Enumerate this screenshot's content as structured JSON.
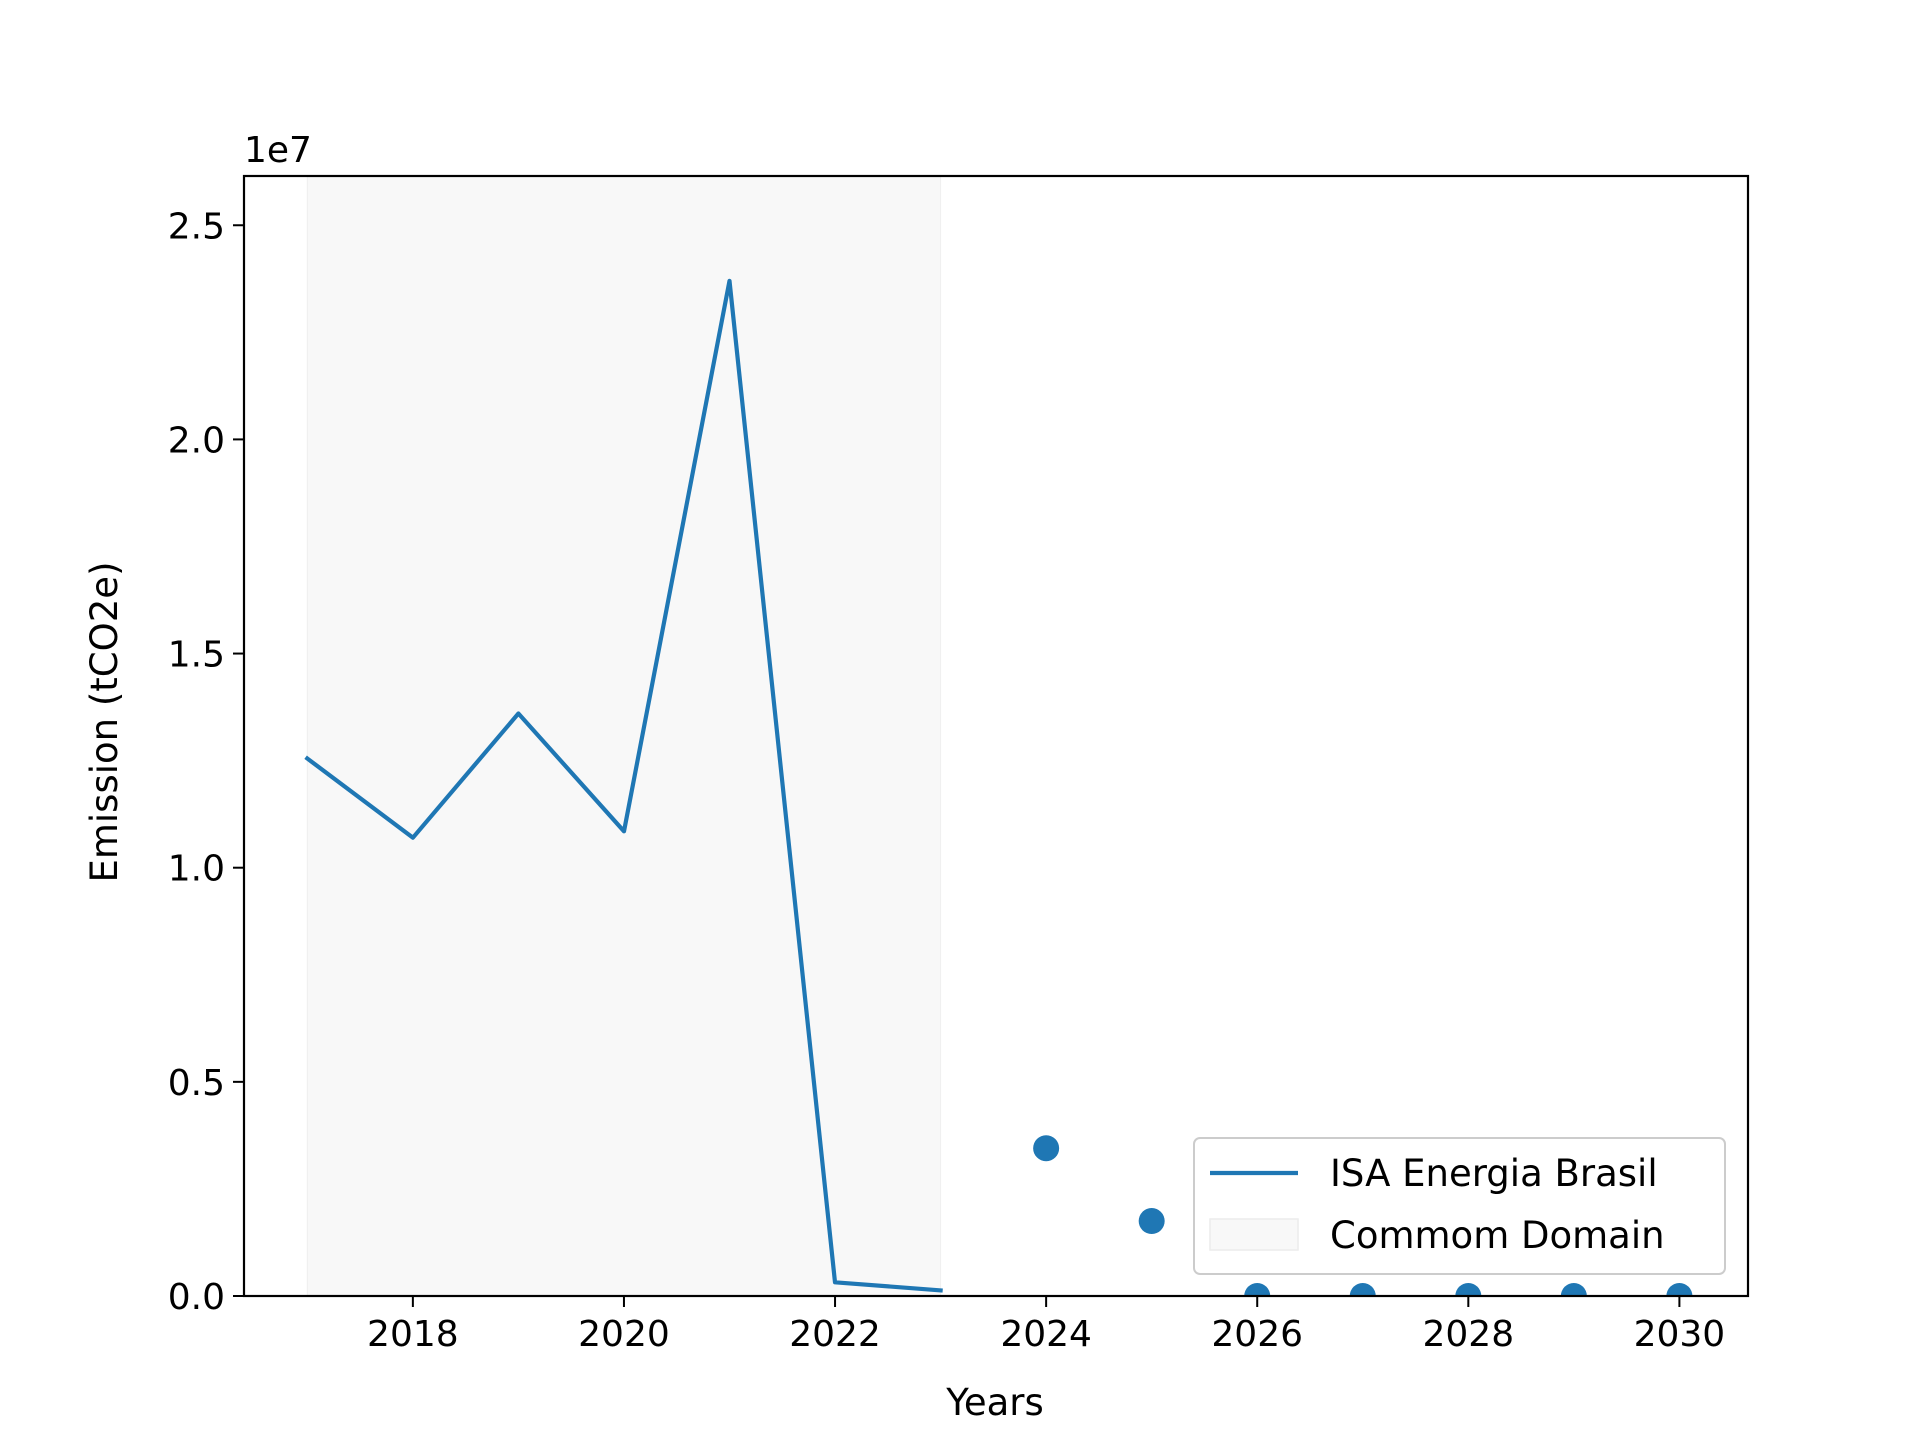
{
  "chart_data": {
    "type": "line",
    "title": "",
    "xlabel": "Years",
    "ylabel": "Emission (tCO2e)",
    "y_offset_label": "1e7",
    "xlim": [
      2016.4,
      2030.65
    ],
    "ylim": [
      0,
      26150000
    ],
    "x_ticks": [
      2018,
      2020,
      2022,
      2024,
      2026,
      2028,
      2030
    ],
    "y_ticks": [
      0,
      5000000,
      10000000,
      15000000,
      20000000,
      25000000
    ],
    "y_tick_labels": [
      "0.0",
      "0.5",
      "1.0",
      "1.5",
      "2.0",
      "2.5"
    ],
    "grid": false,
    "legend_position": "lower right",
    "common_domain": {
      "label": "Commom Domain",
      "x_start": 2017,
      "x_end": 2023,
      "color": "#f8f8f8"
    },
    "series": [
      {
        "name": "ISA Energia Brasil",
        "kind": "line",
        "color": "#1f77b4",
        "x": [
          2017,
          2018,
          2019,
          2020,
          2021,
          2022,
          2023
        ],
        "y": [
          12550000,
          10700000,
          13600000,
          10850000,
          23700000,
          320000,
          130000
        ]
      },
      {
        "kind": "scatter",
        "color": "#1f77b4",
        "x": [
          2024,
          2025,
          2026,
          2027,
          2028,
          2029,
          2030
        ],
        "y": [
          3450000,
          1750000,
          0,
          0,
          0,
          0,
          0
        ]
      }
    ]
  }
}
